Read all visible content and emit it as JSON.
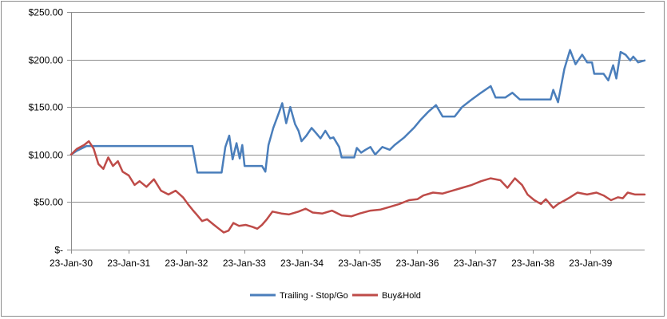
{
  "chart_data": {
    "type": "line",
    "title": "",
    "xlabel": "",
    "ylabel": "",
    "ylim": [
      0,
      250
    ],
    "y_ticks": [
      {
        "value": 0,
        "label": "$-"
      },
      {
        "value": 50,
        "label": "$50.00"
      },
      {
        "value": 100,
        "label": "$100.00"
      },
      {
        "value": 150,
        "label": "$150.00"
      },
      {
        "value": 200,
        "label": "$200.00"
      },
      {
        "value": 250,
        "label": "$250.00"
      }
    ],
    "x_ticks": [
      "23-Jan-30",
      "23-Jan-31",
      "23-Jan-32",
      "23-Jan-33",
      "23-Jan-34",
      "23-Jan-35",
      "23-Jan-36",
      "23-Jan-37",
      "23-Jan-38",
      "23-Jan-39"
    ],
    "xlim": [
      "1930-01-23",
      "1939-12-31"
    ],
    "grid": "horizontal",
    "legend_position": "bottom",
    "series": [
      {
        "name": "Trailing - Stop/Go",
        "color": "#4a7ebb",
        "points": [
          [
            "1930-01-23",
            100
          ],
          [
            "1930-03-01",
            104
          ],
          [
            "1930-05-01",
            109
          ],
          [
            "1930-08-01",
            109
          ],
          [
            "1931-06-01",
            109
          ],
          [
            "1932-01-23",
            109
          ],
          [
            "1932-03-01",
            109
          ],
          [
            "1932-04-01",
            81
          ],
          [
            "1932-09-01",
            81
          ],
          [
            "1932-09-25",
            108
          ],
          [
            "1932-10-20",
            120
          ],
          [
            "1932-11-10",
            95
          ],
          [
            "1932-12-05",
            112
          ],
          [
            "1932-12-25",
            96
          ],
          [
            "1933-01-10",
            110
          ],
          [
            "1933-01-25",
            88
          ],
          [
            "1933-03-15",
            88
          ],
          [
            "1933-05-15",
            88
          ],
          [
            "1933-06-05",
            82
          ],
          [
            "1933-06-25",
            110
          ],
          [
            "1933-07-25",
            128
          ],
          [
            "1933-09-01",
            145
          ],
          [
            "1933-09-20",
            154
          ],
          [
            "1933-10-15",
            133
          ],
          [
            "1933-11-10",
            150
          ],
          [
            "1933-12-10",
            132
          ],
          [
            "1934-01-01",
            125
          ],
          [
            "1934-01-20",
            114
          ],
          [
            "1934-02-20",
            120
          ],
          [
            "1934-03-25",
            128
          ],
          [
            "1934-04-25",
            122
          ],
          [
            "1934-05-20",
            117
          ],
          [
            "1934-06-20",
            125
          ],
          [
            "1934-07-20",
            117
          ],
          [
            "1934-08-10",
            118
          ],
          [
            "1934-09-15",
            108
          ],
          [
            "1934-10-01",
            97
          ],
          [
            "1934-12-20",
            97
          ],
          [
            "1935-01-05",
            107
          ],
          [
            "1935-02-01",
            102
          ],
          [
            "1935-03-01",
            105
          ],
          [
            "1935-04-01",
            108
          ],
          [
            "1935-05-01",
            100
          ],
          [
            "1935-06-15",
            108
          ],
          [
            "1935-08-01",
            105
          ],
          [
            "1935-09-01",
            110
          ],
          [
            "1935-11-01",
            118
          ],
          [
            "1936-01-01",
            128
          ],
          [
            "1936-02-15",
            137
          ],
          [
            "1936-04-01",
            145
          ],
          [
            "1936-05-20",
            152
          ],
          [
            "1936-07-01",
            140
          ],
          [
            "1936-09-15",
            140
          ],
          [
            "1936-11-01",
            150
          ],
          [
            "1937-01-01",
            158
          ],
          [
            "1937-03-01",
            165
          ],
          [
            "1937-05-01",
            172
          ],
          [
            "1937-06-01",
            160
          ],
          [
            "1937-08-01",
            160
          ],
          [
            "1937-09-15",
            165
          ],
          [
            "1937-11-01",
            158
          ],
          [
            "1938-04-01",
            158
          ],
          [
            "1938-05-15",
            158
          ],
          [
            "1938-06-01",
            168
          ],
          [
            "1938-07-01",
            155
          ],
          [
            "1938-08-10",
            190
          ],
          [
            "1938-09-15",
            210
          ],
          [
            "1938-10-20",
            195
          ],
          [
            "1938-12-01",
            205
          ],
          [
            "1939-01-01",
            197
          ],
          [
            "1939-02-01",
            197
          ],
          [
            "1939-02-15",
            185
          ],
          [
            "1939-04-15",
            185
          ],
          [
            "1939-05-15",
            178
          ],
          [
            "1939-06-15",
            194
          ],
          [
            "1939-07-05",
            180
          ],
          [
            "1939-08-01",
            208
          ],
          [
            "1939-09-01",
            205
          ],
          [
            "1939-10-01",
            199
          ],
          [
            "1939-10-20",
            203
          ],
          [
            "1939-11-20",
            197
          ],
          [
            "1939-12-31",
            199
          ]
        ]
      },
      {
        "name": "Buy&Hold",
        "color": "#be4b48",
        "points": [
          [
            "1930-01-23",
            100
          ],
          [
            "1930-03-01",
            106
          ],
          [
            "1930-04-15",
            110
          ],
          [
            "1930-05-15",
            114
          ],
          [
            "1930-06-15",
            106
          ],
          [
            "1930-07-15",
            90
          ],
          [
            "1930-08-15",
            85
          ],
          [
            "1930-09-15",
            97
          ],
          [
            "1930-10-15",
            88
          ],
          [
            "1930-11-15",
            93
          ],
          [
            "1930-12-15",
            82
          ],
          [
            "1931-01-23",
            78
          ],
          [
            "1931-03-01",
            68
          ],
          [
            "1931-04-01",
            72
          ],
          [
            "1931-05-15",
            66
          ],
          [
            "1931-07-01",
            74
          ],
          [
            "1931-08-15",
            62
          ],
          [
            "1931-10-01",
            58
          ],
          [
            "1931-11-15",
            62
          ],
          [
            "1932-01-01",
            55
          ],
          [
            "1932-02-01",
            48
          ],
          [
            "1932-03-01",
            42
          ],
          [
            "1932-04-01",
            36
          ],
          [
            "1932-05-01",
            30
          ],
          [
            "1932-06-01",
            32
          ],
          [
            "1932-07-15",
            26
          ],
          [
            "1932-08-15",
            22
          ],
          [
            "1932-09-15",
            18
          ],
          [
            "1932-10-15",
            20
          ],
          [
            "1932-11-15",
            28
          ],
          [
            "1932-12-20",
            25
          ],
          [
            "1933-02-01",
            26
          ],
          [
            "1933-03-15",
            24
          ],
          [
            "1933-04-15",
            22
          ],
          [
            "1933-05-15",
            26
          ],
          [
            "1933-06-15",
            32
          ],
          [
            "1933-07-20",
            40
          ],
          [
            "1933-09-15",
            38
          ],
          [
            "1933-11-01",
            37
          ],
          [
            "1934-01-01",
            40
          ],
          [
            "1934-02-15",
            43
          ],
          [
            "1934-04-01",
            39
          ],
          [
            "1934-06-01",
            38
          ],
          [
            "1934-08-01",
            41
          ],
          [
            "1934-10-01",
            36
          ],
          [
            "1934-12-01",
            35
          ],
          [
            "1935-01-23",
            38
          ],
          [
            "1935-04-01",
            41
          ],
          [
            "1935-06-01",
            42
          ],
          [
            "1935-08-01",
            45
          ],
          [
            "1935-10-01",
            48
          ],
          [
            "1935-12-01",
            52
          ],
          [
            "1936-01-23",
            53
          ],
          [
            "1936-03-01",
            57
          ],
          [
            "1936-05-01",
            60
          ],
          [
            "1936-07-01",
            59
          ],
          [
            "1936-09-01",
            62
          ],
          [
            "1936-11-01",
            65
          ],
          [
            "1937-01-01",
            68
          ],
          [
            "1937-03-01",
            72
          ],
          [
            "1937-05-01",
            75
          ],
          [
            "1937-07-01",
            73
          ],
          [
            "1937-08-15",
            65
          ],
          [
            "1937-10-01",
            75
          ],
          [
            "1937-11-15",
            68
          ],
          [
            "1937-12-20",
            58
          ],
          [
            "1938-02-01",
            52
          ],
          [
            "1938-03-15",
            48
          ],
          [
            "1938-04-15",
            53
          ],
          [
            "1938-06-01",
            44
          ],
          [
            "1938-07-01",
            48
          ],
          [
            "1938-08-15",
            52
          ],
          [
            "1938-09-15",
            55
          ],
          [
            "1938-11-01",
            60
          ],
          [
            "1939-01-01",
            58
          ],
          [
            "1939-03-01",
            60
          ],
          [
            "1939-04-15",
            57
          ],
          [
            "1939-06-01",
            52
          ],
          [
            "1939-07-15",
            55
          ],
          [
            "1939-08-15",
            54
          ],
          [
            "1939-09-15",
            60
          ],
          [
            "1939-11-01",
            58
          ],
          [
            "1939-12-31",
            58
          ]
        ]
      }
    ]
  }
}
